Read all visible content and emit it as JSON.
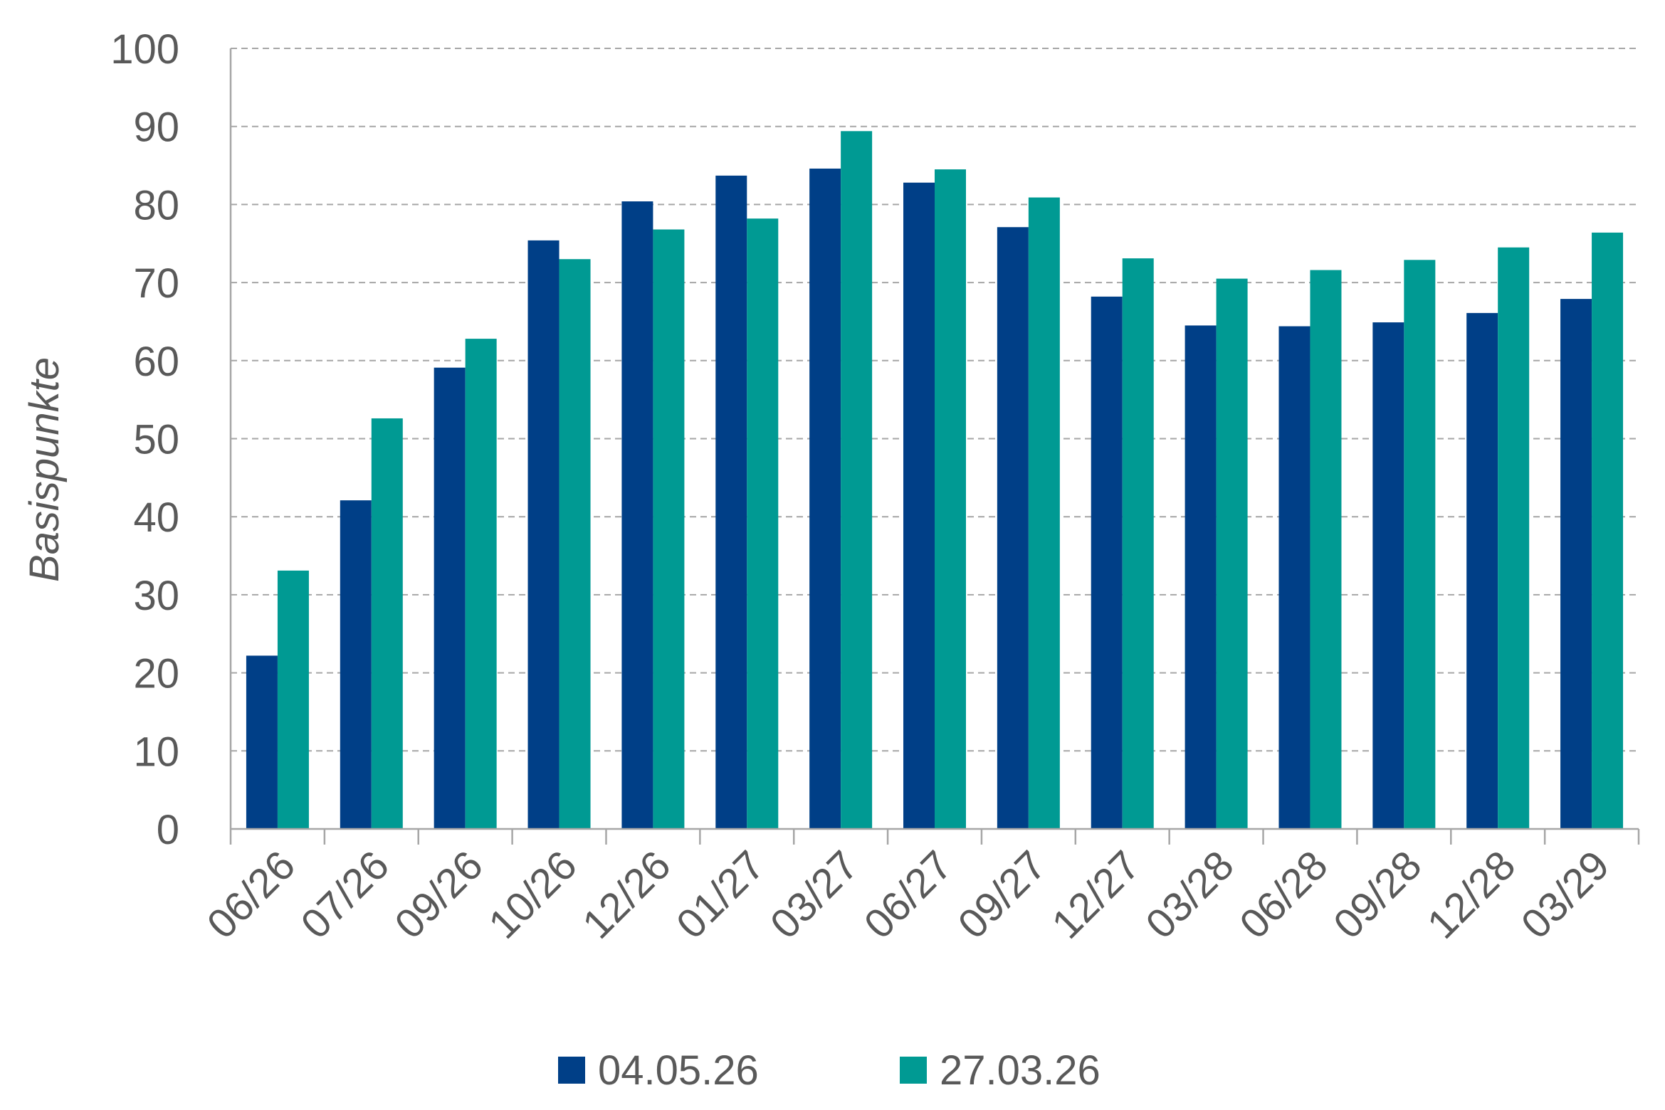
{
  "chart_data": {
    "type": "bar",
    "ylabel": "Basispunkte",
    "ylim": [
      0,
      100
    ],
    "yticks": [
      "0",
      "10",
      "20",
      "30",
      "40",
      "50",
      "60",
      "70",
      "80",
      "90",
      "100"
    ],
    "categories": [
      "06/26",
      "07/26",
      "09/26",
      "10/26",
      "12/26",
      "01/27",
      "03/27",
      "06/27",
      "09/27",
      "12/27",
      "03/28",
      "06/28",
      "09/28",
      "12/28",
      "03/29"
    ],
    "series": [
      {
        "name": "04.05.26",
        "color": "#003f87",
        "values": [
          22.2,
          42.1,
          59.1,
          75.4,
          80.4,
          83.7,
          84.6,
          82.8,
          77.1,
          68.2,
          64.5,
          64.4,
          64.9,
          66.1,
          67.9
        ]
      },
      {
        "name": "27.03.26",
        "color": "#009a93",
        "values": [
          33.1,
          52.6,
          62.8,
          73.0,
          76.8,
          78.2,
          89.4,
          84.5,
          80.9,
          73.1,
          70.5,
          71.6,
          72.9,
          74.5,
          76.4
        ]
      }
    ],
    "grid": true,
    "legend_position": "bottom"
  }
}
